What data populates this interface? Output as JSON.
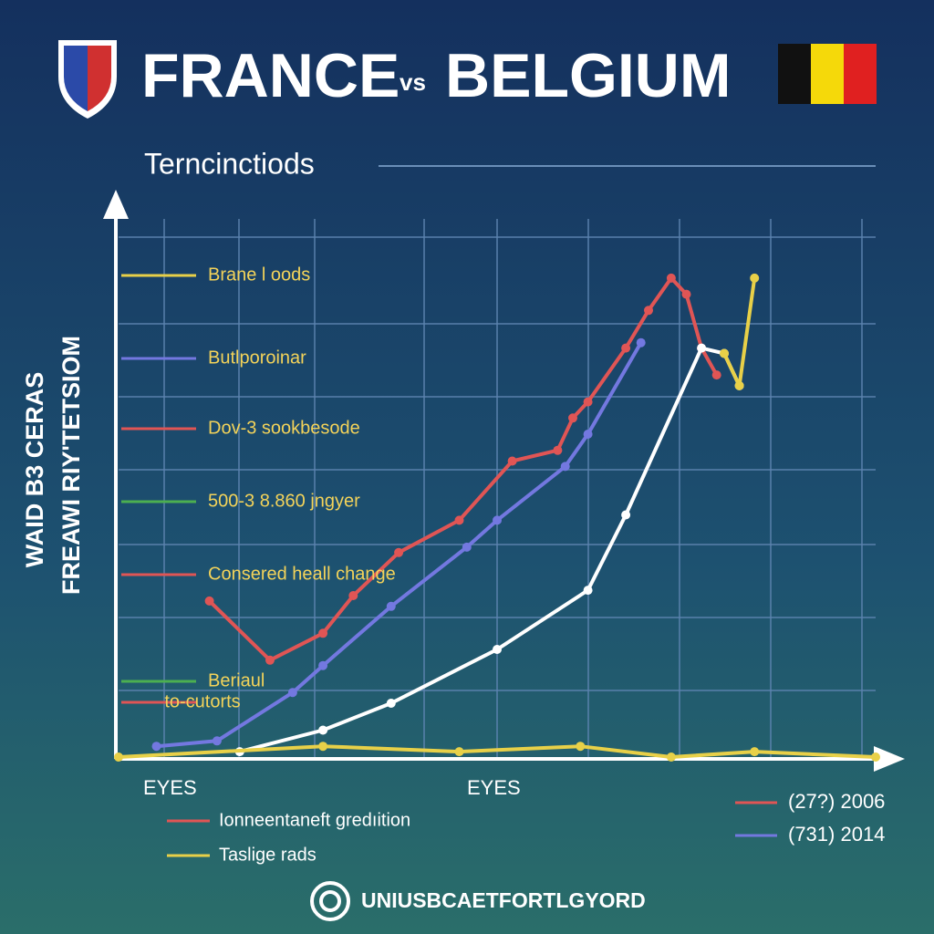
{
  "chart_data": {
    "type": "line",
    "title": {
      "left": "FRANCE",
      "middle": "vs",
      "right": "BELGIUM"
    },
    "subtitle": "Terncinctiods",
    "y_label": [
      "WAID B3 CERAS",
      "FREAWI RIY'TETSIOM"
    ],
    "x_labels": [
      "EYES",
      "EYES"
    ],
    "xlim": [
      0,
      100
    ],
    "ylim": [
      0,
      100
    ],
    "grid": true,
    "series": [
      {
        "name": "(27?) 2006",
        "color": "#e05555",
        "x": [
          12,
          20,
          27,
          31,
          37,
          45,
          52,
          58,
          60,
          62,
          67,
          70,
          73,
          75,
          77,
          79
        ],
        "values": [
          29,
          18,
          23,
          30,
          38,
          44,
          55,
          57,
          63,
          66,
          76,
          83,
          89,
          86,
          76,
          71
        ]
      },
      {
        "name": "(731) 2014",
        "color": "#7378e0",
        "x": [
          5,
          13,
          23,
          27,
          36,
          46,
          50,
          59,
          62,
          69
        ],
        "values": [
          2,
          3,
          12,
          17,
          28,
          39,
          44,
          54,
          60,
          77
        ]
      },
      {
        "color": "#ffffff",
        "x": [
          16,
          27,
          36,
          50,
          62,
          67,
          77,
          80,
          82
        ],
        "values": [
          1,
          5,
          10,
          20,
          31,
          45,
          76,
          75,
          69
        ]
      },
      {
        "color": "#e8d048",
        "x": [
          0,
          27,
          45,
          61,
          73,
          84,
          100
        ],
        "values": [
          0,
          2,
          1,
          2,
          0,
          1,
          0
        ]
      },
      {
        "color": "#e8d048",
        "x": [
          80,
          82,
          84
        ],
        "values": [
          75,
          69,
          89
        ]
      }
    ],
    "annotations": [
      {
        "text": "Brane l oods",
        "color": "#e8d048"
      },
      {
        "text": "Butlporoinar",
        "color": "#7378e0"
      },
      {
        "text": "Dov-3 sookbesode",
        "color": "#e05555"
      },
      {
        "text": "500-3 8.860 jngyer",
        "color": "#4caf50"
      },
      {
        "text": "Consered heall change",
        "color": "#e05555"
      },
      {
        "text": "Beriaul",
        "color": "#4caf50"
      },
      {
        "text": "to-cutorts",
        "color": "#e05555"
      }
    ],
    "bottom_legend": [
      {
        "text": "Ionneentaneft gredıition",
        "color": "#e05555"
      },
      {
        "text": "Taslige rads",
        "color": "#e8d048"
      }
    ]
  },
  "footer": "UNIUSBCAETFORTLGYORD"
}
